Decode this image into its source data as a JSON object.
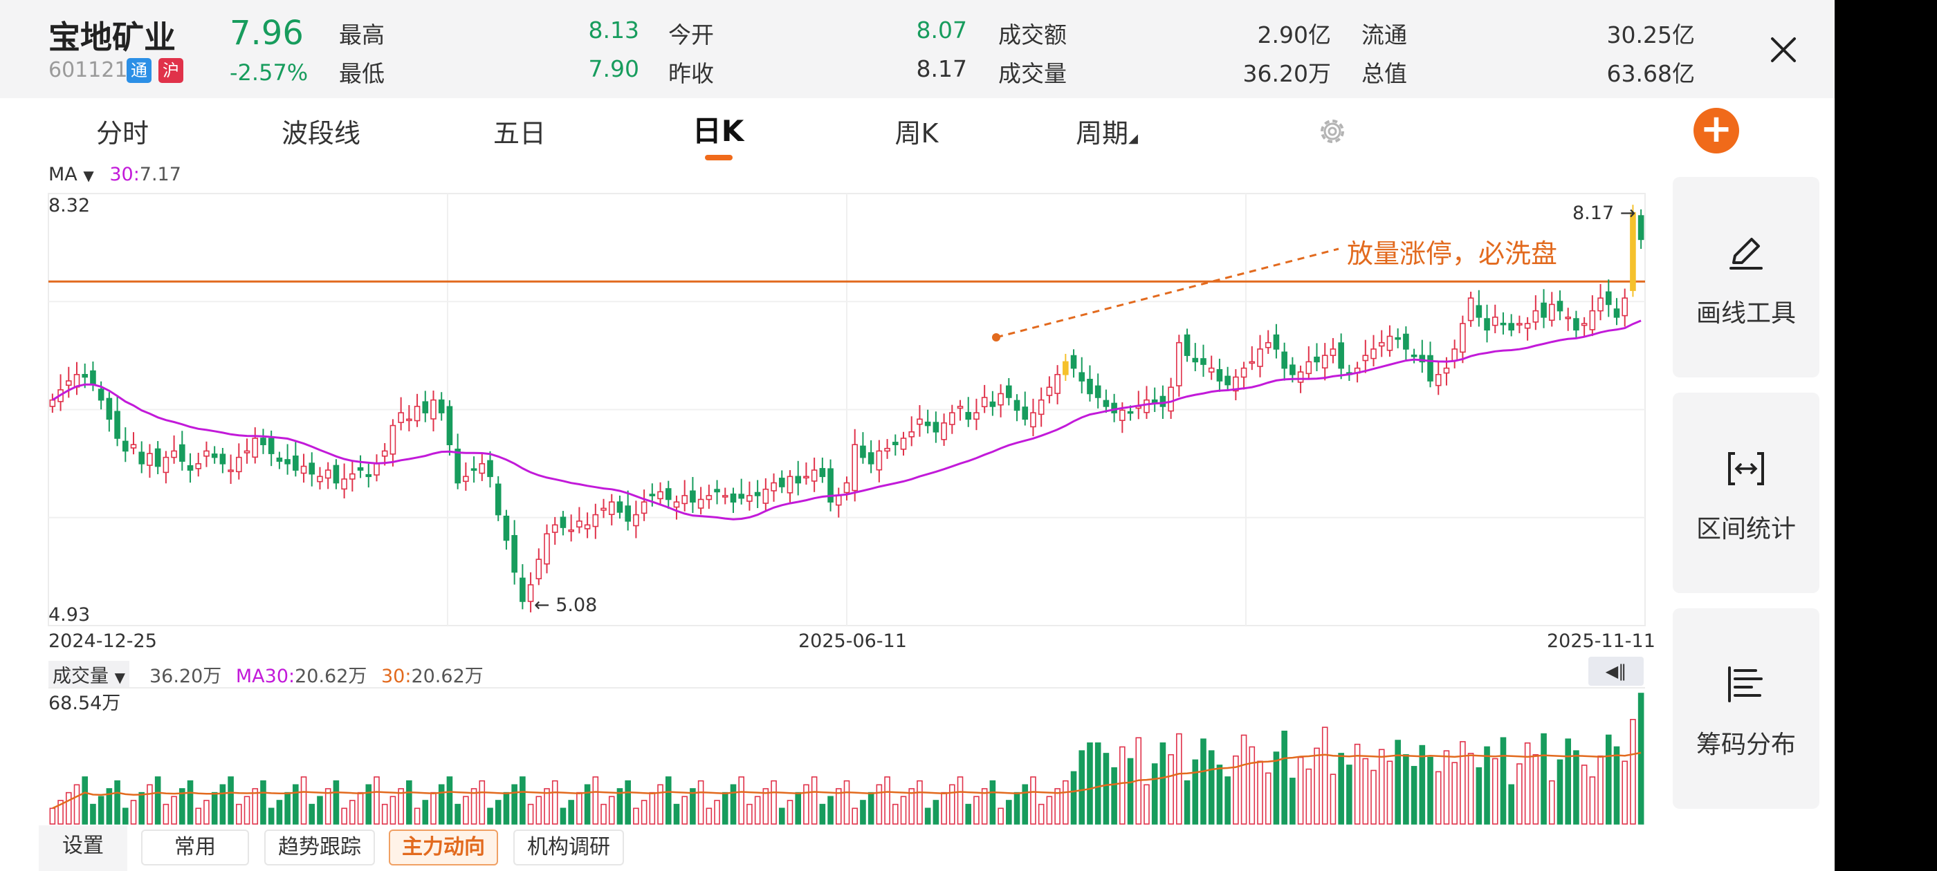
{
  "stock": {
    "name": "宝地矿业",
    "code": "601121",
    "badge_tong": "通",
    "badge_hu": "沪",
    "price": "7.96",
    "change_pct": "-2.57%"
  },
  "quote": {
    "high_label": "最高",
    "high": "8.13",
    "low_label": "最低",
    "low": "7.90",
    "open_label": "今开",
    "open": "8.07",
    "prev_close_label": "昨收",
    "prev_close": "8.17",
    "turnover_label": "成交额",
    "turnover": "2.90亿",
    "volume_label": "成交量",
    "volume": "36.20万",
    "float_cap_label": "流通",
    "float_cap": "30.25亿",
    "total_cap_label": "总值",
    "total_cap": "63.68亿"
  },
  "tabs": {
    "t1": "分时",
    "t2": "波段线",
    "t3": "五日",
    "t4": "日K",
    "t5": "周K",
    "t6": "周期"
  },
  "indicator": {
    "ma_label": "MA",
    "ma30_key": "30:",
    "ma30_value": "7.17"
  },
  "colors": {
    "up": "#e0324a",
    "down": "#179c5d",
    "ma": "#c21ad9",
    "accent": "#e26a1e",
    "highlight": "#f5c12c"
  },
  "price_axis": {
    "top": "8.32",
    "bottom": "4.93"
  },
  "annotations": {
    "high_marker": "8.17 →",
    "low_marker": "← 5.08",
    "note": "放量涨停，必洗盘"
  },
  "dates": {
    "d1": "2024-12-25",
    "d2": "2025-06-11",
    "d3": "2025-11-11"
  },
  "volume_panel": {
    "label": "成交量",
    "value": "36.20万",
    "ma30_label": "MA30:",
    "ma30_value": "20.62万",
    "ma30b_label": "30:",
    "ma30b_value": "20.62万",
    "axis_top": "68.54万"
  },
  "side_panel": {
    "draw_tool": "画线工具",
    "range_stats": "区间统计",
    "chip_dist": "筹码分布"
  },
  "bottom_tabs": {
    "settings": "设置",
    "common": "常用",
    "trend": "趋势跟踪",
    "main_force": "主力动向",
    "research": "机构调研"
  },
  "chart_data": {
    "type": "candlestick",
    "period": "daily",
    "x_range": [
      "2024-12-25",
      "2025-11-11"
    ],
    "y_range": [
      4.93,
      8.32
    ],
    "period_low": 5.08,
    "period_high": 8.17,
    "horizontal_line": 7.63,
    "ma30_last": 7.17,
    "closes": [
      6.7,
      6.78,
      6.85,
      6.9,
      6.88,
      6.82,
      6.7,
      6.55,
      6.4,
      6.3,
      6.35,
      6.2,
      6.28,
      6.18,
      6.25,
      6.3,
      6.22,
      6.15,
      6.2,
      6.3,
      6.25,
      6.2,
      6.15,
      6.25,
      6.3,
      6.4,
      6.35,
      6.28,
      6.22,
      6.2,
      6.15,
      6.18,
      6.12,
      6.1,
      6.15,
      6.05,
      6.08,
      6.12,
      6.15,
      6.1,
      6.2,
      6.3,
      6.5,
      6.6,
      6.55,
      6.65,
      6.6,
      6.7,
      6.6,
      6.35,
      6.05,
      6.1,
      6.15,
      6.2,
      6.1,
      5.8,
      5.6,
      5.35,
      5.12,
      5.25,
      5.45,
      5.65,
      5.72,
      5.7,
      5.68,
      5.75,
      5.72,
      5.8,
      5.85,
      5.9,
      5.82,
      5.75,
      5.8,
      5.9,
      5.95,
      5.98,
      5.92,
      5.9,
      5.95,
      5.9,
      5.92,
      5.95,
      5.98,
      5.95,
      5.9,
      5.93,
      5.95,
      5.95,
      6.0,
      6.05,
      6.02,
      6.1,
      6.05,
      6.1,
      6.15,
      6.1,
      5.9,
      5.95,
      6.05,
      6.35,
      6.25,
      6.2,
      6.3,
      6.32,
      6.35,
      6.4,
      6.45,
      6.55,
      6.5,
      6.45,
      6.52,
      6.6,
      6.65,
      6.55,
      6.6,
      6.72,
      6.65,
      6.75,
      6.72,
      6.62,
      6.55,
      6.6,
      6.7,
      6.8,
      6.9,
      7.0,
      6.95,
      6.85,
      6.75,
      6.72,
      6.65,
      6.6,
      6.62,
      6.6,
      6.65,
      6.7,
      6.68,
      6.65,
      6.8,
      7.15,
      7.05,
      7.0,
      6.98,
      6.95,
      6.85,
      6.82,
      6.88,
      6.95,
      7.0,
      7.1,
      7.15,
      7.1,
      6.95,
      6.9,
      6.92,
      7.0,
      7.0,
      7.05,
      7.1,
      6.95,
      6.9,
      6.95,
      7.05,
      7.1,
      7.15,
      7.2,
      7.18,
      7.1,
      7.05,
      7.0,
      6.85,
      6.9,
      6.95,
      7.1,
      7.3,
      7.5,
      7.35,
      7.25,
      7.35,
      7.3,
      7.25,
      7.3,
      7.3,
      7.4,
      7.35,
      7.45,
      7.4,
      7.35,
      7.25,
      7.3,
      7.4,
      7.5,
      7.45,
      7.35,
      7.5,
      8.17,
      7.96
    ]
  }
}
